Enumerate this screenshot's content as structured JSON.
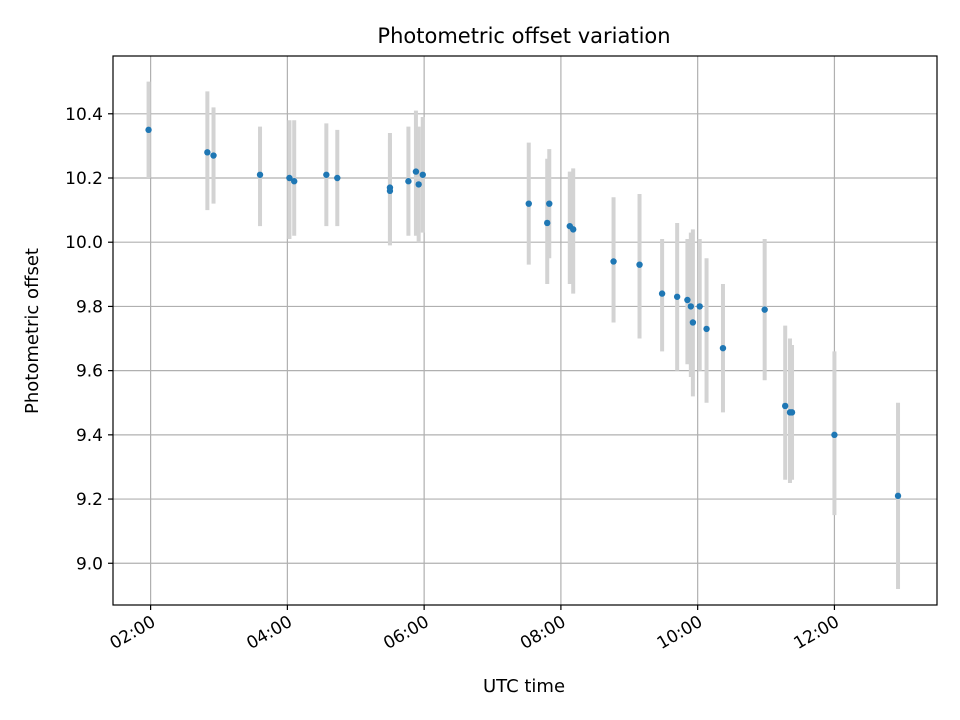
{
  "chart_data": {
    "type": "scatter",
    "title": "Photometric offset variation",
    "xlabel": "UTC time",
    "ylabel": "Photometric offset",
    "x_unit": "hours UTC",
    "xlim": [
      1.45,
      13.5
    ],
    "ylim": [
      8.87,
      10.58
    ],
    "grid": true,
    "x_ticks": [
      {
        "value": 2,
        "label": "02:00"
      },
      {
        "value": 4,
        "label": "04:00"
      },
      {
        "value": 6,
        "label": "06:00"
      },
      {
        "value": 8,
        "label": "08:00"
      },
      {
        "value": 10,
        "label": "10:00"
      },
      {
        "value": 12,
        "label": "12:00"
      }
    ],
    "y_ticks": [
      {
        "value": 9.0,
        "label": "9.0"
      },
      {
        "value": 9.2,
        "label": "9.2"
      },
      {
        "value": 9.4,
        "label": "9.4"
      },
      {
        "value": 9.6,
        "label": "9.6"
      },
      {
        "value": 9.8,
        "label": "9.8"
      },
      {
        "value": 10.0,
        "label": "10.0"
      },
      {
        "value": 10.2,
        "label": "10.2"
      },
      {
        "value": 10.4,
        "label": "10.4"
      }
    ],
    "marker_color": "#1f77b4",
    "errorbar_color": "#d3d3d3",
    "points": [
      {
        "x": 1.97,
        "y": 10.35,
        "lo": 10.2,
        "hi": 10.5
      },
      {
        "x": 2.83,
        "y": 10.28,
        "lo": 10.1,
        "hi": 10.47
      },
      {
        "x": 2.92,
        "y": 10.27,
        "lo": 10.12,
        "hi": 10.42
      },
      {
        "x": 3.6,
        "y": 10.21,
        "lo": 10.05,
        "hi": 10.36
      },
      {
        "x": 4.03,
        "y": 10.2,
        "lo": 10.01,
        "hi": 10.38
      },
      {
        "x": 4.1,
        "y": 10.19,
        "lo": 10.02,
        "hi": 10.38
      },
      {
        "x": 4.57,
        "y": 10.21,
        "lo": 10.05,
        "hi": 10.37
      },
      {
        "x": 4.73,
        "y": 10.2,
        "lo": 10.05,
        "hi": 10.35
      },
      {
        "x": 5.5,
        "y": 10.17,
        "lo": 9.99,
        "hi": 10.34
      },
      {
        "x": 5.5,
        "y": 10.16,
        "lo": 10.0,
        "hi": 10.32
      },
      {
        "x": 5.77,
        "y": 10.19,
        "lo": 10.02,
        "hi": 10.36
      },
      {
        "x": 5.88,
        "y": 10.22,
        "lo": 10.02,
        "hi": 10.41
      },
      {
        "x": 5.92,
        "y": 10.18,
        "lo": 10.0,
        "hi": 10.36
      },
      {
        "x": 5.98,
        "y": 10.21,
        "lo": 10.03,
        "hi": 10.39
      },
      {
        "x": 7.53,
        "y": 10.12,
        "lo": 9.93,
        "hi": 10.31
      },
      {
        "x": 7.8,
        "y": 10.06,
        "lo": 9.87,
        "hi": 10.26
      },
      {
        "x": 7.83,
        "y": 10.12,
        "lo": 9.95,
        "hi": 10.29
      },
      {
        "x": 8.13,
        "y": 10.05,
        "lo": 9.87,
        "hi": 10.22
      },
      {
        "x": 8.18,
        "y": 10.04,
        "lo": 9.84,
        "hi": 10.23
      },
      {
        "x": 8.77,
        "y": 9.94,
        "lo": 9.75,
        "hi": 10.14
      },
      {
        "x": 9.15,
        "y": 9.93,
        "lo": 9.7,
        "hi": 10.15
      },
      {
        "x": 9.48,
        "y": 9.84,
        "lo": 9.66,
        "hi": 10.01
      },
      {
        "x": 9.7,
        "y": 9.83,
        "lo": 9.6,
        "hi": 10.06
      },
      {
        "x": 9.85,
        "y": 9.82,
        "lo": 9.62,
        "hi": 10.01
      },
      {
        "x": 9.9,
        "y": 9.8,
        "lo": 9.58,
        "hi": 10.03
      },
      {
        "x": 9.93,
        "y": 9.75,
        "lo": 9.52,
        "hi": 10.04
      },
      {
        "x": 10.03,
        "y": 9.8,
        "lo": 9.6,
        "hi": 10.01
      },
      {
        "x": 10.13,
        "y": 9.73,
        "lo": 9.5,
        "hi": 9.95
      },
      {
        "x": 10.37,
        "y": 9.67,
        "lo": 9.47,
        "hi": 9.87
      },
      {
        "x": 10.98,
        "y": 9.79,
        "lo": 9.57,
        "hi": 10.01
      },
      {
        "x": 11.28,
        "y": 9.49,
        "lo": 9.26,
        "hi": 9.74
      },
      {
        "x": 11.35,
        "y": 9.47,
        "lo": 9.25,
        "hi": 9.7
      },
      {
        "x": 11.38,
        "y": 9.47,
        "lo": 9.26,
        "hi": 9.68
      },
      {
        "x": 12.0,
        "y": 9.4,
        "lo": 9.15,
        "hi": 9.66
      },
      {
        "x": 12.93,
        "y": 9.21,
        "lo": 8.92,
        "hi": 9.5
      }
    ]
  }
}
